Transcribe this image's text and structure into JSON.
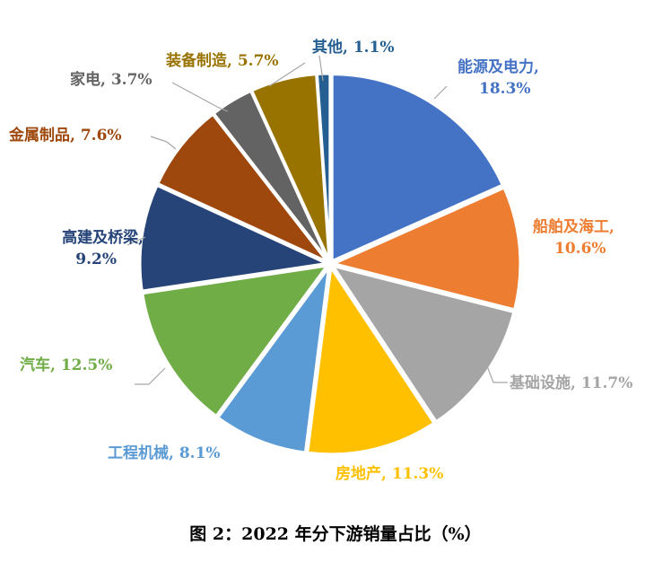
{
  "chart_data": {
    "type": "pie",
    "caption": "图 2：2022 年分下游销量占比（%）",
    "unit": "%",
    "slices": [
      {
        "name": "能源及电力",
        "value": 18.3,
        "label_lines": [
          "能源及电力,",
          "18.3%"
        ],
        "color": "#4472C4"
      },
      {
        "name": "船舶及海工",
        "value": 10.6,
        "label_lines": [
          "船舶及海工,",
          "10.6%"
        ],
        "color": "#ED7D31"
      },
      {
        "name": "基础设施",
        "value": 11.7,
        "label_lines": [
          "基础设施, 11.7%"
        ],
        "color": "#A5A5A5"
      },
      {
        "name": "房地产",
        "value": 11.3,
        "label_lines": [
          "房地产, 11.3%"
        ],
        "color": "#FFC000"
      },
      {
        "name": "工程机械",
        "value": 8.1,
        "label_lines": [
          "工程机械, 8.1%"
        ],
        "color": "#5B9BD5"
      },
      {
        "name": "汽车",
        "value": 12.5,
        "label_lines": [
          "汽车, 12.5%"
        ],
        "color": "#70AD47"
      },
      {
        "name": "高建及桥梁",
        "value": 9.2,
        "label_lines": [
          "高建及桥梁,",
          "9.2%"
        ],
        "color": "#264478"
      },
      {
        "name": "金属制品",
        "value": 7.6,
        "label_lines": [
          "金属制品, 7.6%"
        ],
        "color": "#9E480E"
      },
      {
        "name": "家电",
        "value": 3.7,
        "label_lines": [
          "家电, 3.7%"
        ],
        "color": "#636363"
      },
      {
        "name": "装备制造",
        "value": 5.7,
        "label_lines": [
          "装备制造, 5.7%"
        ],
        "color": "#997300"
      },
      {
        "name": "其他",
        "value": 1.1,
        "label_lines": [
          "其他, 1.1%"
        ],
        "color": "#255E91"
      }
    ],
    "leader_line_color": "#A6A6A6"
  }
}
